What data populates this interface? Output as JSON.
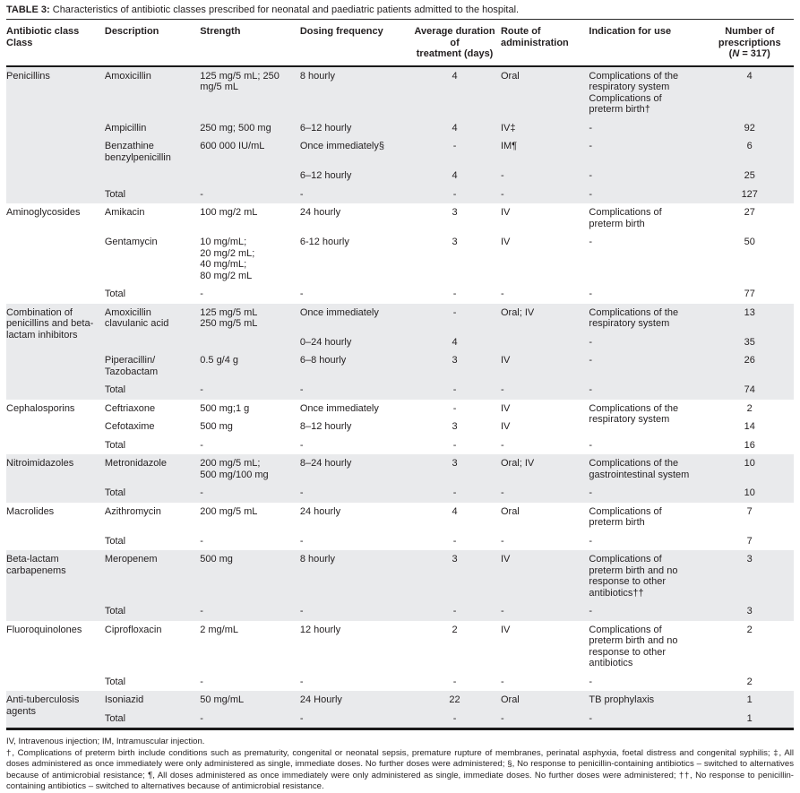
{
  "page": {
    "title_label": "TABLE 3:",
    "title_text": " Characteristics of antibiotic classes prescribed for neonatal and paediatric patients admitted to the hospital."
  },
  "colors": {
    "text": "#231f20",
    "shaded_row": "#e9eaec",
    "rule": "#1a1a1a"
  },
  "table": {
    "columns": [
      {
        "key": "class",
        "label": "Antibiotic class\nClass"
      },
      {
        "key": "desc",
        "label": "Description"
      },
      {
        "key": "strength",
        "label": "Strength"
      },
      {
        "key": "dosing",
        "label": "Dosing frequency"
      },
      {
        "key": "duration",
        "label": "Average duration of\ntreatment (days)"
      },
      {
        "key": "route",
        "label": "Route of\nadministration"
      },
      {
        "key": "indication",
        "label": "Indication for use"
      },
      {
        "key": "count",
        "label": "Number of\nprescriptions\n(N = 317)"
      }
    ],
    "sections": [
      {
        "name": "Penicillins",
        "shaded": true,
        "rows": [
          {
            "desc": "Amoxicillin",
            "strength": "125 mg/5 mL; 250 mg/5 mL",
            "dosing": "8 hourly",
            "duration": "4",
            "route": "Oral",
            "indication": "Complications of the respiratory system\nComplications of preterm birth†",
            "count": "4"
          },
          {
            "desc": "Ampicillin",
            "strength": "250 mg; 500 mg",
            "dosing": "6–12 hourly",
            "duration": "4",
            "route": "IV‡",
            "indication": "-",
            "count": "92"
          },
          {
            "desc": "Benzathine benzylpenicillin",
            "strength": "600 000 IU/mL",
            "dosing": "Once immediately§",
            "duration": "-",
            "route": "IM¶",
            "indication": "-",
            "count": "6"
          },
          {
            "desc": "",
            "strength": "",
            "dosing": "6–12 hourly",
            "duration": "4",
            "route": "-",
            "indication": "-",
            "count": "25"
          },
          {
            "desc": "Total",
            "strength": "-",
            "dosing": "-",
            "duration": "-",
            "route": "-",
            "indication": "-",
            "count": "127"
          }
        ]
      },
      {
        "name": "Aminoglycosides",
        "shaded": false,
        "rows": [
          {
            "desc": "Amikacin",
            "strength": "100 mg/2 mL",
            "dosing": "24 hourly",
            "duration": "3",
            "route": "IV",
            "indication": "Complications of preterm birth",
            "count": "27"
          },
          {
            "desc": "Gentamycin",
            "strength": "10 mg/mL;\n20 mg/2 mL;\n40 mg/mL;\n80 mg/2 mL",
            "dosing": "6-12 hourly",
            "duration": "3",
            "route": "IV",
            "indication": "-",
            "count": "50"
          },
          {
            "desc": "Total",
            "strength": "-",
            "dosing": "-",
            "duration": "-",
            "route": "-",
            "indication": "-",
            "count": "77"
          }
        ]
      },
      {
        "name": "Combination of penicillins and beta-lactam inhibitors",
        "shaded": true,
        "rows": [
          {
            "desc": "Amoxicillin clavulanic acid",
            "strength": "125 mg/5 mL\n250 mg/5 mL",
            "dosing": "Once immediately",
            "duration": "-",
            "route": "Oral; IV",
            "indication": "Complications of the respiratory system",
            "count": "13"
          },
          {
            "desc": "",
            "strength": "",
            "dosing": "0–24 hourly",
            "duration": "4",
            "route": "",
            "indication": "-",
            "count": "35"
          },
          {
            "desc": "Piperacillin/\nTazobactam",
            "strength": "0.5 g/4 g",
            "dosing": "6–8 hourly",
            "duration": "3",
            "route": "IV",
            "indication": "-",
            "count": "26"
          },
          {
            "desc": "Total",
            "strength": "-",
            "dosing": "-",
            "duration": "-",
            "route": "-",
            "indication": "-",
            "count": "74"
          }
        ]
      },
      {
        "name": "Cephalosporins",
        "shaded": false,
        "rows": [
          {
            "desc": "Ceftriaxone",
            "strength": "500 mg;1 g",
            "dosing": "Once immediately",
            "duration": "-",
            "route": "IV",
            "indication": "Complications of the respiratory system",
            "indication_rowspan": 2,
            "count": "2"
          },
          {
            "desc": "Cefotaxime",
            "strength": "500 mg",
            "dosing": "8–12 hourly",
            "duration": "3",
            "route": "IV",
            "indication": null,
            "count": "14"
          },
          {
            "desc": "Total",
            "strength": "-",
            "dosing": "-",
            "duration": "-",
            "route": "-",
            "indication": "-",
            "count": "16"
          }
        ]
      },
      {
        "name": "Nitroimidazoles",
        "shaded": true,
        "rows": [
          {
            "desc": "Metronidazole",
            "strength": "200 mg/5 mL;\n500 mg/100 mg",
            "dosing": "8–24 hourly",
            "duration": "3",
            "route": "Oral; IV",
            "indication": "Complications of the gastrointestinal system",
            "count": "10"
          },
          {
            "desc": "Total",
            "strength": "-",
            "dosing": "-",
            "duration": "-",
            "route": "-",
            "indication": "-",
            "count": "10"
          }
        ]
      },
      {
        "name": "Macrolides",
        "shaded": false,
        "rows": [
          {
            "desc": "Azithromycin",
            "strength": "200 mg/5 mL",
            "dosing": "24 hourly",
            "duration": "4",
            "route": "Oral",
            "indication": "Complications of preterm birth",
            "count": "7"
          },
          {
            "desc": "Total",
            "strength": "-",
            "dosing": "-",
            "duration": "-",
            "route": "-",
            "indication": "-",
            "count": "7"
          }
        ]
      },
      {
        "name": "Beta-lactam carbapenems",
        "shaded": true,
        "rows": [
          {
            "desc": "Meropenem",
            "strength": "500 mg",
            "dosing": "8 hourly",
            "duration": "3",
            "route": "IV",
            "indication": "Complications of preterm birth and no response to other antibiotics††",
            "count": "3"
          },
          {
            "desc": "Total",
            "strength": "-",
            "dosing": "-",
            "duration": "-",
            "route": "-",
            "indication": "-",
            "count": "3"
          }
        ]
      },
      {
        "name": "Fluoroquinolones",
        "shaded": false,
        "rows": [
          {
            "desc": "Ciprofloxacin",
            "strength": "2 mg/mL",
            "dosing": "12 hourly",
            "duration": "2",
            "route": "IV",
            "indication": "Complications of preterm birth and no response to other antibiotics",
            "count": "2"
          },
          {
            "desc": "Total",
            "strength": "-",
            "dosing": "-",
            "duration": "-",
            "route": "-",
            "indication": "-",
            "count": "2"
          }
        ]
      },
      {
        "name": "Anti-tuberculosis agents",
        "shaded": true,
        "rows": [
          {
            "desc": "Isoniazid",
            "strength": "50 mg/mL",
            "dosing": "24 Hourly",
            "duration": "22",
            "route": "Oral",
            "indication": "TB prophylaxis",
            "count": "1"
          },
          {
            "desc": "Total",
            "strength": "-",
            "dosing": "-",
            "duration": "-",
            "route": "-",
            "indication": "-",
            "count": "1"
          }
        ]
      }
    ]
  },
  "footnotes": [
    "IV, Intravenous injection; IM, Intramuscular injection.",
    "†, Complications of preterm birth include conditions such as prematurity, congenital or neonatal sepsis, premature rupture of membranes, perinatal asphyxia, foetal distress and congenital syphilis; ‡, All doses administered as once immediately were only administered as single, immediate doses. No further doses were administered; §, No response to penicillin-containing antibiotics – switched to alternatives because of antimicrobial resistance; ¶, All doses administered as once immediately were only administered as single, immediate doses. No further doses were administered; ††, No response to penicillin-containing antibiotics – switched to alternatives because of antimicrobial resistance."
  ]
}
